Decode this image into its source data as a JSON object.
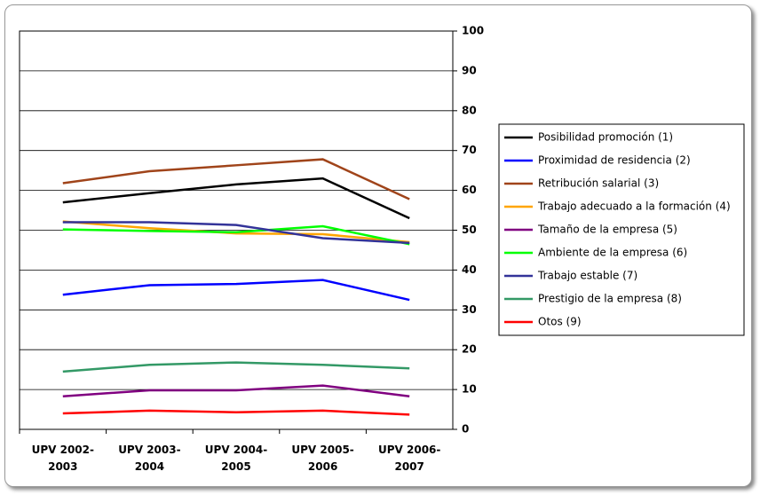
{
  "chart_data": {
    "type": "line",
    "categories": [
      "UPV 2002-\n2003",
      "UPV 2003-\n2004",
      "UPV 2004-\n2005",
      "UPV 2005-\n2006",
      "UPV 2006-\n2007"
    ],
    "series": [
      {
        "name": "Posibilidad promoción (1)",
        "color": "#000000",
        "values": [
          57,
          59.3,
          61.5,
          63,
          53
        ]
      },
      {
        "name": "Proximidad de residencia (2)",
        "color": "#0000ff",
        "values": [
          33.8,
          36.2,
          36.5,
          37.5,
          32.5
        ]
      },
      {
        "name": "Retribución salarial (3)",
        "color": "#a0441a",
        "values": [
          61.8,
          64.8,
          66.3,
          67.8,
          57.8
        ]
      },
      {
        "name": "Trabajo adecuado a la formación (4)",
        "color": "#ffa500",
        "values": [
          52.2,
          50.5,
          49.2,
          49,
          47
        ]
      },
      {
        "name": "Tamaño de la empresa (5)",
        "color": "#800080",
        "values": [
          8.3,
          9.8,
          9.8,
          11,
          8.3
        ]
      },
      {
        "name": "Ambiente de la empresa (6)",
        "color": "#00ff00",
        "values": [
          50.2,
          49.8,
          49.5,
          51,
          46.5
        ]
      },
      {
        "name": "Trabajo estable (7)",
        "color": "#333399",
        "values": [
          52,
          52,
          51.3,
          48,
          46.8
        ]
      },
      {
        "name": "Prestigio de la empresa (8)",
        "color": "#339966",
        "values": [
          14.5,
          16.2,
          16.8,
          16.2,
          15.3
        ]
      },
      {
        "name": "Otos (9)",
        "color": "#ff0000",
        "values": [
          4,
          4.7,
          4.3,
          4.7,
          3.7
        ]
      }
    ],
    "ylim": [
      0,
      100
    ],
    "yticks": [
      0,
      10,
      20,
      30,
      40,
      50,
      60,
      70,
      80,
      90,
      100
    ],
    "grid": true,
    "y_axis_side": "right",
    "legend": "right"
  }
}
